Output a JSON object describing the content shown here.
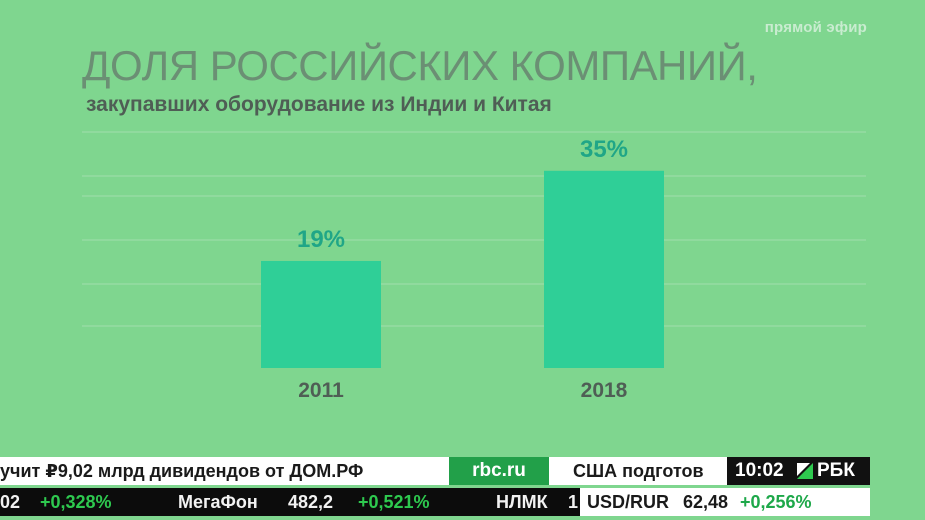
{
  "broadcast": {
    "live_label": "прямой эфир"
  },
  "colors": {
    "background": "#7fd68f",
    "bar": "#2fcf97",
    "value_label": "#20a687",
    "gridline": "#95dca4"
  },
  "chart_data": {
    "type": "bar",
    "title": "ДОЛЯ РОССИЙСКИХ КОМПАНИЙ,",
    "subtitle": "закупавших оборудование из Индии и Китая",
    "categories": [
      "2011",
      "2018"
    ],
    "values": [
      19,
      35
    ],
    "value_labels": [
      "19%",
      "35%"
    ],
    "unit": "%",
    "xlabel": "",
    "ylabel": "",
    "ylim": [
      0,
      40
    ],
    "grid": true
  },
  "ticker": {
    "headline": "учит ₽9,02 млрд дивидендов от ДОМ.РФ",
    "site": "rbc.ru",
    "next_headline": "США подготов",
    "clock": "10:02",
    "brand": "РБК",
    "quotes": [
      {
        "name": "",
        "value": "02",
        "change": "+0,328%"
      },
      {
        "name": "МегаФон",
        "value": "482,2",
        "change": "+0,521%"
      },
      {
        "name": "НЛМК",
        "value": "1",
        "change": ""
      }
    ],
    "fx": {
      "pair": "USD/RUR",
      "value": "62,48",
      "change": "+0,256%"
    }
  }
}
